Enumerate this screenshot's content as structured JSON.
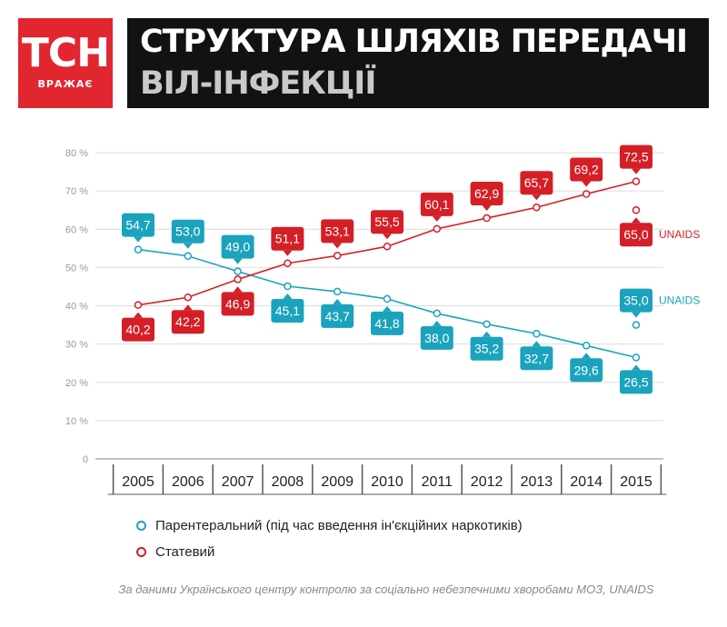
{
  "logo": {
    "main": "ТСН",
    "sub": "ВРАЖАЄ"
  },
  "title": {
    "line1": "СТРУКТУРА ШЛЯХІВ ПЕРЕДАЧІ",
    "line2": "ВІЛ-ІНФЕКЦІЇ"
  },
  "colors": {
    "parenteral": "#1ba3bd",
    "sexual": "#d41f26",
    "grid": "#dcdcdc",
    "axis_text": "#9a9a9a"
  },
  "chart_data": {
    "type": "line",
    "x": [
      "2005",
      "2006",
      "2007",
      "2008",
      "2009",
      "2010",
      "2011",
      "2012",
      "2013",
      "2014",
      "2015"
    ],
    "y_ticks": [
      "0",
      "10 %",
      "20 %",
      "30 %",
      "40 %",
      "50 %",
      "60 %",
      "70 %",
      "80 %"
    ],
    "ylim": [
      0,
      80
    ],
    "grid": "horizontal",
    "legend_position": "bottom-left",
    "series": [
      {
        "name": "Парентеральний (під час введення ін'єкційних наркотиків)",
        "color": "#1ba3bd",
        "values": [
          54.7,
          53.0,
          49.0,
          45.1,
          43.7,
          41.8,
          38.0,
          35.2,
          32.7,
          29.6,
          26.5
        ],
        "labels": [
          "54,7",
          "53,0",
          "49,0",
          "45,1",
          "43,7",
          "41,8",
          "38,0",
          "35,2",
          "32,7",
          "29,6",
          "26,5"
        ],
        "label_sides": [
          "above",
          "above",
          "above",
          "below",
          "below",
          "below",
          "below",
          "below",
          "below",
          "below",
          "below"
        ]
      },
      {
        "name": "Статевий",
        "color": "#d41f26",
        "values": [
          40.2,
          42.2,
          46.9,
          51.1,
          53.1,
          55.5,
          60.1,
          62.9,
          65.7,
          69.2,
          72.5
        ],
        "labels": [
          "40,2",
          "42,2",
          "46,9",
          "51,1",
          "53,1",
          "55,5",
          "60,1",
          "62,9",
          "65,7",
          "69,2",
          "72,5"
        ],
        "label_sides": [
          "below",
          "below",
          "below",
          "above",
          "above",
          "above",
          "above",
          "above",
          "above",
          "above",
          "above"
        ]
      }
    ],
    "annotations": [
      {
        "series": 0,
        "x": "2015",
        "value": 35.0,
        "label": "35,0",
        "source": "UNAIDS",
        "label_side": "above"
      },
      {
        "series": 1,
        "x": "2015",
        "value": 65.0,
        "label": "65,0",
        "source": "UNAIDS",
        "label_side": "below"
      }
    ]
  },
  "source_note": "За даними Українського центру контролю за соціально небезпечними хворобами МОЗ, UNAIDS"
}
